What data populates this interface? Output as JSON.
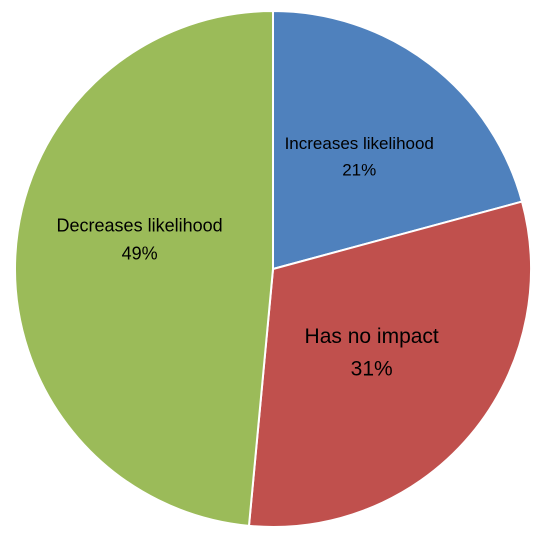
{
  "chart_data": {
    "type": "pie",
    "title": "",
    "slices": [
      {
        "label": "Increases likelihood",
        "value": 21,
        "value_label": "21%",
        "color": "#4F81BD"
      },
      {
        "label": "Has no impact",
        "value": 31,
        "value_label": "31%",
        "color": "#C0504D"
      },
      {
        "label": "Decreases likelihood",
        "value": 49,
        "value_label": "49%",
        "color": "#9BBB59"
      }
    ],
    "start_angle_deg": 0,
    "direction": "clockwise",
    "legend": "none",
    "data_labels": "inside"
  }
}
